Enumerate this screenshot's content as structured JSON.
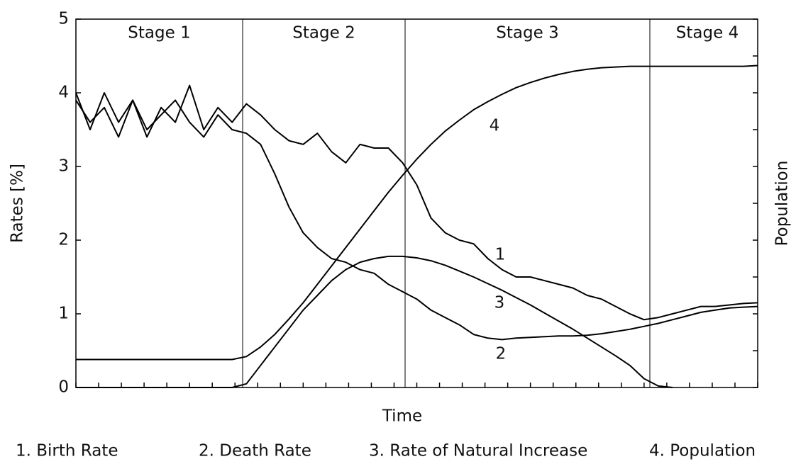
{
  "chart_data": {
    "type": "line",
    "xlabel": "Time",
    "ylabel": "Rates [%]",
    "y2label": "Population",
    "stages": [
      "Stage 1",
      "Stage 2",
      "Stage 3",
      "Stage 4"
    ],
    "categories": [
      null,
      null,
      null,
      null,
      null,
      null,
      null,
      null,
      null,
      null,
      null,
      null,
      null,
      null,
      null,
      null,
      null,
      null,
      null,
      null,
      null,
      null,
      null,
      null,
      null,
      null,
      null,
      null,
      null,
      null,
      null,
      null,
      null,
      null,
      null,
      null,
      null,
      null,
      null,
      null,
      null,
      null,
      null,
      null,
      null,
      null,
      null,
      null,
      null
    ],
    "ylim": [
      0,
      5
    ],
    "yticks": [
      0,
      1,
      2,
      3,
      4,
      5
    ],
    "y2lim": [
      0,
      10
    ],
    "y2ticks": [
      0,
      1,
      2,
      3,
      4,
      5,
      6,
      7,
      8,
      9,
      10
    ],
    "series": [
      {
        "name": "1. Birth Rate",
        "line_label": "1",
        "color": "#000000",
        "values": [
          4.0,
          3.5,
          4.0,
          3.6,
          3.9,
          3.4,
          3.8,
          3.6,
          4.1,
          3.5,
          3.8,
          3.6,
          3.85,
          3.7,
          3.5,
          3.35,
          3.3,
          3.45,
          3.2,
          3.05,
          3.3,
          3.25,
          3.25,
          3.05,
          2.75,
          2.3,
          2.1,
          2.0,
          1.95,
          1.75,
          1.6,
          1.5,
          1.5,
          1.45,
          1.4,
          1.35,
          1.25,
          1.2,
          1.1,
          1.0,
          0.92,
          0.95,
          1.0,
          1.05,
          1.1,
          1.1,
          1.12,
          1.14,
          1.15
        ]
      },
      {
        "name": "2. Death Rate",
        "line_label": "2",
        "color": "#000000",
        "values": [
          3.9,
          3.6,
          3.8,
          3.4,
          3.9,
          3.5,
          3.7,
          3.9,
          3.6,
          3.4,
          3.7,
          3.5,
          3.45,
          3.3,
          2.9,
          2.45,
          2.1,
          1.9,
          1.75,
          1.7,
          1.6,
          1.55,
          1.4,
          1.3,
          1.2,
          1.05,
          0.95,
          0.85,
          0.72,
          0.67,
          0.65,
          0.67,
          0.68,
          0.69,
          0.7,
          0.7,
          0.71,
          0.73,
          0.76,
          0.79,
          0.83,
          0.87,
          0.92,
          0.97,
          1.02,
          1.05,
          1.08,
          1.09,
          1.1
        ]
      },
      {
        "name": "3. Rate of Natural Increase",
        "line_label": "3",
        "color": "#000000",
        "values": [
          0,
          0,
          0,
          0,
          0,
          0,
          0,
          0,
          0,
          0,
          0,
          0,
          0.05,
          0.3,
          0.55,
          0.8,
          1.05,
          1.25,
          1.45,
          1.6,
          1.7,
          1.75,
          1.78,
          1.78,
          1.76,
          1.72,
          1.66,
          1.58,
          1.5,
          1.41,
          1.32,
          1.22,
          1.12,
          1.01,
          0.9,
          0.79,
          0.67,
          0.55,
          0.43,
          0.3,
          0.12,
          0.02,
          0,
          null,
          null,
          null,
          null,
          null,
          null
        ]
      },
      {
        "name": "4. Population",
        "line_label": "4",
        "color": "#000000",
        "axis": "y2",
        "values": [
          0.76,
          0.76,
          0.76,
          0.76,
          0.76,
          0.76,
          0.76,
          0.76,
          0.76,
          0.76,
          0.76,
          0.76,
          0.84,
          1.1,
          1.44,
          1.86,
          2.3,
          2.8,
          3.3,
          3.8,
          4.3,
          4.8,
          5.3,
          5.76,
          6.2,
          6.6,
          6.96,
          7.26,
          7.54,
          7.76,
          7.96,
          8.14,
          8.28,
          8.4,
          8.5,
          8.58,
          8.64,
          8.68,
          8.7,
          8.72,
          8.72,
          8.72,
          8.72,
          8.72,
          8.72,
          8.72,
          8.72,
          8.72,
          8.74
        ]
      }
    ]
  }
}
